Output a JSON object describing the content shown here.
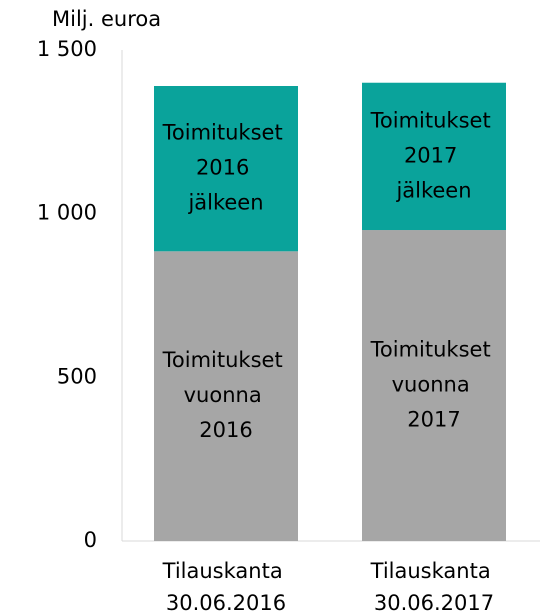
{
  "chart_data": {
    "type": "stacked_bar",
    "y_axis_label": "Milj. euroa",
    "categories": [
      "Tilauskanta 30.06.2016",
      "Tilauskanta 30.06.2017"
    ],
    "series": [
      {
        "name": "Toimitukset vuonna",
        "color": "#a6a6a6",
        "values": [
          885,
          950
        ],
        "segment_labels": [
          "Toimitukset vuonna 2016",
          "Toimitukset vuonna 2017"
        ]
      },
      {
        "name": "Toimitukset jälkeen",
        "color": "#0aa39b",
        "values": [
          505,
          450
        ],
        "segment_labels": [
          "Toimitukset 2016 jälkeen",
          "Toimitukset 2017 jälkeen"
        ]
      }
    ],
    "ylim": [
      0,
      1500
    ],
    "yticks": [
      0,
      500,
      {
        "value": 1000,
        "label": "1 000"
      },
      {
        "value": 1500,
        "label": "1 500"
      }
    ]
  }
}
